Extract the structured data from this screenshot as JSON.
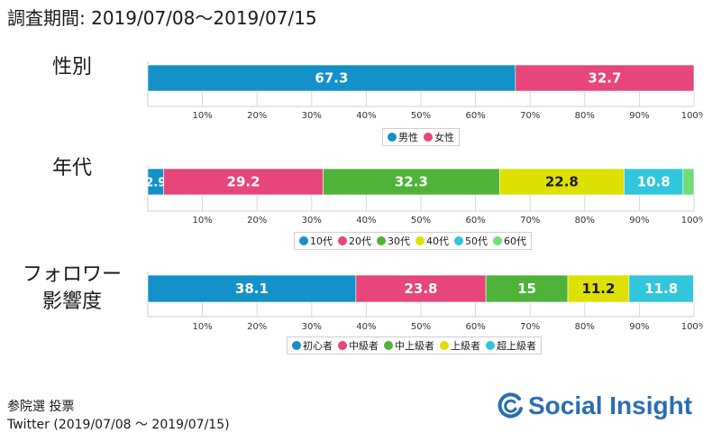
{
  "header": {
    "period": "調査期間: 2019/07/08～2019/07/15"
  },
  "footer": {
    "line1": "参院選 投票",
    "line2": "Twitter (2019/07/08 ～ 2019/07/15)",
    "brand": "Social Insight",
    "brand_icon": "social-insight-logo-icon"
  },
  "colors": {
    "blue": "#1491c8",
    "pink": "#e7467a",
    "green": "#4fb33a",
    "yellow": "#dde000",
    "cyan": "#31c6dc",
    "lightgreen": "#6fdc78"
  },
  "chart_data": [
    {
      "type": "bar",
      "orientation": "horizontal",
      "stacked": true,
      "row_label": [
        "性別"
      ],
      "xlim": [
        0,
        100
      ],
      "x_ticks": [
        "10%",
        "20%",
        "30%",
        "40%",
        "50%",
        "60%",
        "70%",
        "80%",
        "90%",
        "100%"
      ],
      "legend_position": "bottom",
      "series": [
        {
          "name": "男性",
          "value": 67.3,
          "label": "67.3",
          "color": "#1491c8"
        },
        {
          "name": "女性",
          "value": 32.7,
          "label": "32.7",
          "color": "#e7467a"
        }
      ]
    },
    {
      "type": "bar",
      "orientation": "horizontal",
      "stacked": true,
      "row_label": [
        "年代"
      ],
      "xlim": [
        0,
        100
      ],
      "x_ticks": [
        "10%",
        "20%",
        "30%",
        "40%",
        "50%",
        "60%",
        "70%",
        "80%",
        "90%",
        "100%"
      ],
      "legend_position": "bottom",
      "series": [
        {
          "name": "10代",
          "value": 2.9,
          "label": "2.9",
          "color": "#1491c8"
        },
        {
          "name": "20代",
          "value": 29.2,
          "label": "29.2",
          "color": "#e7467a"
        },
        {
          "name": "30代",
          "value": 32.3,
          "label": "32.3",
          "color": "#4fb33a"
        },
        {
          "name": "40代",
          "value": 22.8,
          "label": "22.8",
          "color": "#dde000"
        },
        {
          "name": "50代",
          "value": 10.8,
          "label": "10.8",
          "color": "#31c6dc"
        },
        {
          "name": "60代",
          "value": 2.0,
          "label": "",
          "color": "#6fdc78"
        }
      ]
    },
    {
      "type": "bar",
      "orientation": "horizontal",
      "stacked": true,
      "row_label": [
        "フォロワー",
        "影響度"
      ],
      "xlim": [
        0,
        100
      ],
      "x_ticks": [
        "10%",
        "20%",
        "30%",
        "40%",
        "50%",
        "60%",
        "70%",
        "80%",
        "90%",
        "100%"
      ],
      "legend_position": "bottom",
      "series": [
        {
          "name": "初心者",
          "value": 38.1,
          "label": "38.1",
          "color": "#1491c8"
        },
        {
          "name": "中級者",
          "value": 23.8,
          "label": "23.8",
          "color": "#e7467a"
        },
        {
          "name": "中上級者",
          "value": 15,
          "label": "15",
          "color": "#4fb33a"
        },
        {
          "name": "上級者",
          "value": 11.2,
          "label": "11.2",
          "color": "#dde000"
        },
        {
          "name": "超上級者",
          "value": 11.8,
          "label": "11.8",
          "color": "#31c6dc"
        }
      ]
    }
  ]
}
